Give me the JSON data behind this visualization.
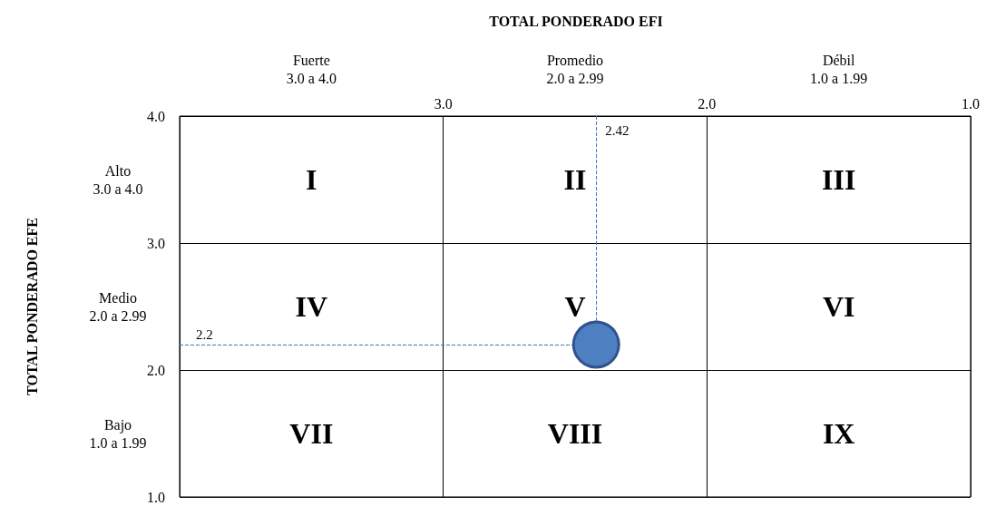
{
  "chart_data": {
    "type": "scatter",
    "title": "TOTAL PONDERADO EFI",
    "x": [
      2.42
    ],
    "series": [
      {
        "color": "#4e7fc0",
        "values": [
          2.2
        ]
      }
    ],
    "marker": "circle",
    "xlim": [
      4,
      1
    ],
    "xticks": [
      {
        "value": 3,
        "label": "3.0"
      },
      {
        "value": 2,
        "label": "2.0"
      },
      {
        "value": 1,
        "label": "1.0"
      }
    ],
    "ylim": [
      1,
      4
    ],
    "yticks": [
      {
        "value": 1,
        "label": "1.0"
      },
      {
        "value": 2,
        "label": "2.0"
      },
      {
        "value": 3,
        "label": "3.0"
      },
      {
        "value": 4,
        "label": "4.0"
      }
    ],
    "grid": true,
    "ref_lines": [
      {
        "axis": "x",
        "value": 2.42,
        "label": "2.42",
        "color": "#4472c4",
        "line_style": "dashed"
      },
      {
        "axis": "y",
        "value": 2.2,
        "label": "2.2",
        "color": "#4472c4",
        "line_style": "dashed"
      }
    ],
    "annotations": [
      "TOTAL PONDERADO EFE",
      "Fuerte\n3.0 a 4.0",
      "Promedio\n2.0 a 2.99",
      "Débil\n1.0 a 1.99",
      "Alto\n3.0 a 4.0",
      "Medio\n2.0 a 2.99",
      "Bajo\n1.0 a 1.99",
      "I",
      "II",
      "III",
      "IV",
      "V",
      "VI",
      "VII",
      "VIII",
      "IX"
    ]
  }
}
